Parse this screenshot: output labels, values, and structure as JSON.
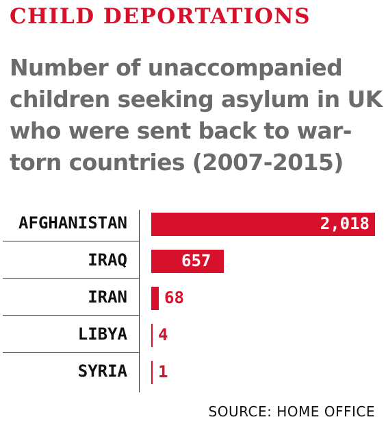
{
  "kicker": "CHILD DEPORTATIONS",
  "headline": "Number of unaccompanied children seeking asylum in UK who were sent back to war-torn countries (2007-2015)",
  "source": "SOURCE: HOME OFFICE",
  "colors": {
    "accent": "#d7102b",
    "headline": "#6b6b6b",
    "text": "#111111"
  },
  "chart_data": {
    "type": "bar",
    "orientation": "horizontal",
    "categories": [
      "AFGHANISTAN",
      "IRAQ",
      "IRAN",
      "LIBYA",
      "SYRIA"
    ],
    "values": [
      2018,
      657,
      68,
      4,
      1
    ],
    "value_labels": [
      "2,018",
      "657",
      "68",
      "4",
      "1"
    ],
    "title": "Number of unaccompanied children seeking asylum in UK who were sent back to war-torn countries (2007-2015)",
    "xlabel": "",
    "ylabel": "",
    "xlim": [
      0,
      2018
    ],
    "grid": false,
    "legend": "none"
  }
}
